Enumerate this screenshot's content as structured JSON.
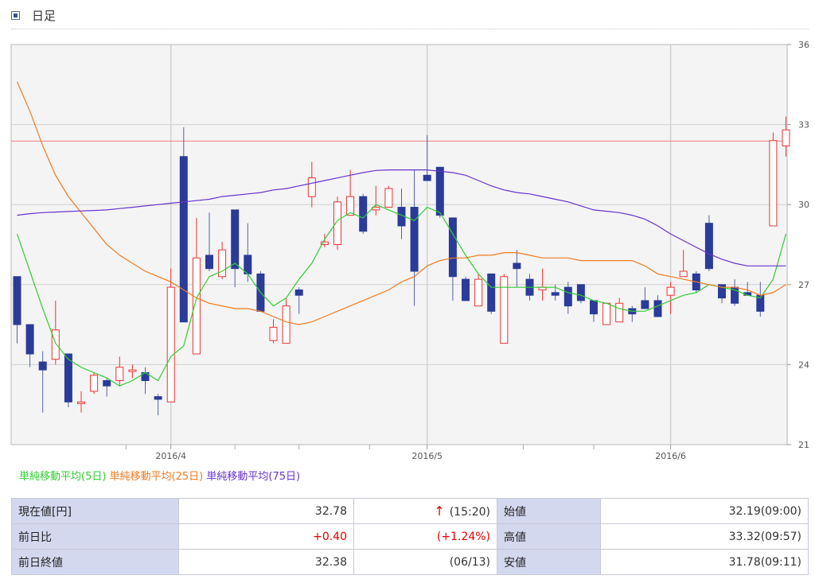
{
  "header": {
    "title": "日足"
  },
  "chart_data": {
    "type": "candlestick",
    "x_ticks": [
      "2016/4",
      "2016/5",
      "2016/6"
    ],
    "y_ticks": [
      "21",
      "24",
      "27",
      "30",
      "33",
      "36"
    ],
    "ylim": [
      21,
      36
    ],
    "reference_line": 32.38,
    "candles": [
      [
        27.3,
        25.5,
        27.3,
        24.8
      ],
      [
        25.5,
        24.4,
        25.5,
        23.9
      ],
      [
        24.1,
        23.8,
        24.5,
        22.2
      ],
      [
        24.2,
        25.3,
        26.4,
        24.0
      ],
      [
        24.4,
        22.6,
        24.4,
        22.4
      ],
      [
        22.6,
        22.6,
        23.0,
        22.2
      ],
      [
        23.0,
        23.6,
        23.7,
        22.9
      ],
      [
        23.4,
        23.2,
        23.5,
        22.8
      ],
      [
        23.4,
        23.9,
        24.3,
        23.2
      ],
      [
        23.8,
        23.8,
        24.0,
        23.5
      ],
      [
        23.7,
        23.4,
        23.9,
        22.9
      ],
      [
        22.8,
        22.7,
        22.9,
        22.1
      ],
      [
        22.6,
        26.9,
        27.6,
        22.6
      ],
      [
        31.8,
        25.6,
        32.9,
        25.6
      ],
      [
        24.4,
        28.0,
        29.5,
        24.4
      ],
      [
        28.1,
        27.6,
        29.7,
        27.5
      ],
      [
        27.3,
        28.3,
        28.6,
        27.2
      ],
      [
        29.8,
        27.6,
        29.8,
        26.9
      ],
      [
        28.1,
        27.4,
        29.3,
        27.1
      ],
      [
        27.4,
        26.0,
        27.5,
        26.0
      ],
      [
        24.9,
        25.4,
        25.7,
        24.8
      ],
      [
        24.8,
        26.2,
        26.5,
        24.8
      ],
      [
        26.8,
        26.6,
        26.9,
        25.9
      ],
      [
        30.3,
        31.0,
        31.6,
        29.9
      ],
      [
        28.5,
        28.6,
        28.9,
        28.4
      ],
      [
        28.5,
        30.1,
        30.3,
        28.3
      ],
      [
        29.6,
        30.3,
        31.3,
        29.6
      ],
      [
        30.3,
        29.0,
        30.4,
        28.9
      ],
      [
        29.8,
        29.9,
        30.7,
        29.6
      ],
      [
        29.9,
        30.6,
        30.7,
        29.9
      ],
      [
        29.9,
        29.2,
        30.6,
        28.7
      ],
      [
        29.9,
        27.5,
        31.3,
        26.2
      ],
      [
        31.1,
        30.9,
        32.6,
        30.9
      ],
      [
        31.4,
        29.6,
        31.4,
        29.5
      ],
      [
        29.5,
        27.3,
        29.5,
        26.4
      ],
      [
        27.2,
        26.4,
        27.3,
        26.4
      ],
      [
        26.2,
        27.2,
        27.4,
        26.2
      ],
      [
        27.4,
        26.0,
        27.4,
        25.9
      ],
      [
        24.8,
        27.3,
        27.4,
        24.8
      ],
      [
        27.8,
        27.6,
        28.3,
        26.9
      ],
      [
        27.2,
        26.6,
        27.4,
        26.4
      ],
      [
        26.8,
        26.9,
        27.6,
        26.4
      ],
      [
        26.7,
        26.6,
        27.0,
        26.4
      ],
      [
        26.9,
        26.2,
        27.1,
        25.9
      ],
      [
        27.0,
        26.4,
        27.0,
        26.3
      ],
      [
        26.4,
        25.9,
        26.4,
        25.6
      ],
      [
        25.5,
        26.3,
        26.3,
        25.5
      ],
      [
        25.6,
        26.3,
        26.5,
        25.6
      ],
      [
        26.1,
        25.9,
        26.2,
        25.6
      ],
      [
        26.4,
        26.1,
        26.9,
        26.1
      ],
      [
        26.4,
        25.8,
        26.6,
        25.8
      ],
      [
        26.6,
        26.9,
        27.1,
        25.9
      ],
      [
        27.3,
        27.5,
        28.3,
        27.4
      ],
      [
        27.4,
        26.8,
        27.5,
        26.7
      ],
      [
        29.3,
        27.6,
        29.6,
        27.5
      ],
      [
        27.0,
        26.5,
        27.0,
        26.3
      ],
      [
        26.9,
        26.3,
        27.2,
        26.2
      ],
      [
        26.7,
        26.6,
        27.1,
        26.6
      ],
      [
        26.6,
        26.0,
        27.1,
        25.8
      ],
      [
        29.2,
        32.4,
        32.7,
        29.2
      ],
      [
        32.2,
        32.8,
        33.3,
        31.8
      ]
    ],
    "series": [
      {
        "name": "単純移動平均(5日)",
        "color": "#33cc33",
        "values": [
          28.9,
          27.5,
          26.1,
          24.8,
          24.2,
          23.9,
          23.7,
          23.5,
          23.2,
          23.4,
          23.7,
          23.4,
          24.3,
          24.7,
          26.5,
          27.3,
          27.5,
          27.8,
          27.4,
          26.7,
          26.2,
          26.5,
          27.2,
          27.8,
          28.7,
          29.4,
          29.7,
          29.5,
          30.0,
          29.8,
          29.6,
          29.4,
          29.9,
          29.7,
          28.9,
          28.1,
          27.4,
          26.9,
          26.9,
          26.9,
          26.9,
          26.9,
          26.9,
          26.7,
          26.6,
          26.4,
          26.3,
          26.1,
          26.0,
          26.0,
          26.2,
          26.4,
          26.6,
          26.7,
          27.0,
          26.9,
          26.8,
          26.6,
          26.5,
          27.2,
          28.9
        ]
      },
      {
        "name": "単純移動平均(25日)",
        "color": "#f07a20",
        "values": [
          34.6,
          33.5,
          32.2,
          31.1,
          30.3,
          29.7,
          29.1,
          28.5,
          28.1,
          27.8,
          27.5,
          27.3,
          27.1,
          26.8,
          26.5,
          26.3,
          26.2,
          26.1,
          26.1,
          26.0,
          25.8,
          25.6,
          25.5,
          25.6,
          25.8,
          26.0,
          26.2,
          26.4,
          26.6,
          26.8,
          27.1,
          27.3,
          27.7,
          27.9,
          28.0,
          28.0,
          28.1,
          28.1,
          28.2,
          28.2,
          28.1,
          28.0,
          28.0,
          28.0,
          27.9,
          27.9,
          27.9,
          27.9,
          27.9,
          27.7,
          27.4,
          27.3,
          27.2,
          27.1,
          27.0,
          26.9,
          26.9,
          26.8,
          26.6,
          26.7,
          27.0
        ]
      },
      {
        "name": "単純移動平均(75日)",
        "color": "#6633cc",
        "values": [
          29.6,
          29.66,
          29.7,
          29.72,
          29.74,
          29.76,
          29.78,
          29.8,
          29.85,
          29.9,
          29.95,
          30.0,
          30.05,
          30.1,
          30.15,
          30.2,
          30.3,
          30.35,
          30.4,
          30.45,
          30.55,
          30.6,
          30.7,
          30.8,
          30.9,
          31.0,
          31.1,
          31.2,
          31.28,
          31.3,
          31.3,
          31.3,
          31.3,
          31.25,
          31.2,
          31.1,
          30.9,
          30.7,
          30.55,
          30.45,
          30.4,
          30.3,
          30.2,
          30.1,
          29.95,
          29.8,
          29.75,
          29.7,
          29.6,
          29.45,
          29.2,
          28.9,
          28.65,
          28.4,
          28.15,
          27.95,
          27.8,
          27.7,
          27.7,
          27.7,
          27.7
        ]
      }
    ]
  },
  "quote": {
    "rows": [
      {
        "label": "現在値[円]",
        "value": "32.78",
        "arrow": "↑",
        "note": "(15:20)",
        "label2": "始値",
        "value2": "32.19(09:00)"
      },
      {
        "label": "前日比",
        "value": "+0.40",
        "note": "(+1.24%)",
        "label2": "高値",
        "value2": "33.32(09:57)"
      },
      {
        "label": "前日終値",
        "value": "32.38",
        "note": "(06/13)",
        "label2": "安値",
        "value2": "31.78(09:11)"
      }
    ]
  },
  "colors": {
    "up": "#ee3333",
    "down": "#2b3b9a",
    "grid": "#d0d0d0",
    "plot_bg": "#f4f4f4",
    "ref_line": "#f08080"
  }
}
